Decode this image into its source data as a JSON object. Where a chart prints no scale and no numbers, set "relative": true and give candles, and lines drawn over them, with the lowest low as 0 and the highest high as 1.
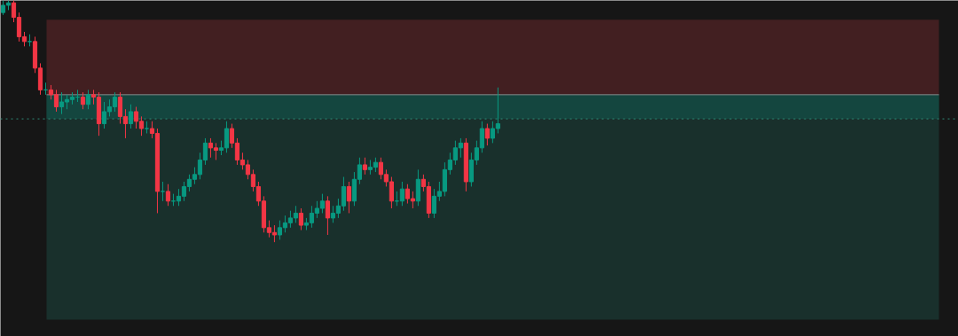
{
  "chart_data": {
    "type": "candlestick",
    "relative": true,
    "categories": [
      null,
      null,
      null,
      null,
      null,
      null,
      null,
      null,
      null,
      null,
      null,
      null,
      null,
      null,
      null,
      null,
      null,
      null,
      null,
      null,
      null,
      null,
      null,
      null,
      null,
      null,
      null,
      null,
      null,
      null,
      null,
      null,
      null,
      null,
      null,
      null,
      null,
      null,
      null,
      null,
      null,
      null,
      null,
      null,
      null,
      null,
      null,
      null,
      null,
      null,
      null,
      null,
      null,
      null,
      null,
      null,
      null,
      null,
      null,
      null,
      null,
      null,
      null,
      null,
      null,
      null,
      null,
      null,
      null,
      null,
      null,
      null,
      null,
      null,
      null,
      null,
      null,
      null,
      null,
      null,
      null,
      null,
      null,
      null,
      null,
      null,
      null,
      null,
      null,
      null,
      null,
      null,
      null,
      null
    ],
    "ohlc": [
      [
        0.95,
        1.0,
        0.94,
        0.98
      ],
      [
        0.98,
        1.0,
        0.96,
        0.99
      ],
      [
        0.99,
        1.0,
        0.91,
        0.93
      ],
      [
        0.93,
        0.95,
        0.83,
        0.85
      ],
      [
        0.85,
        0.87,
        0.81,
        0.83
      ],
      [
        0.83,
        0.86,
        0.81,
        0.83
      ],
      [
        0.83,
        0.85,
        0.7,
        0.72
      ],
      [
        0.72,
        0.74,
        0.61,
        0.63
      ],
      [
        0.63,
        0.66,
        0.61,
        0.63
      ],
      [
        0.63,
        0.65,
        0.59,
        0.61
      ],
      [
        0.61,
        0.63,
        0.54,
        0.56
      ],
      [
        0.56,
        0.62,
        0.53,
        0.58
      ],
      [
        0.58,
        0.61,
        0.55,
        0.59
      ],
      [
        0.59,
        0.62,
        0.57,
        0.6
      ],
      [
        0.6,
        0.63,
        0.58,
        0.6
      ],
      [
        0.6,
        0.62,
        0.55,
        0.57
      ],
      [
        0.57,
        0.63,
        0.55,
        0.61
      ],
      [
        0.61,
        0.63,
        0.57,
        0.6
      ],
      [
        0.6,
        0.62,
        0.44,
        0.49
      ],
      [
        0.49,
        0.58,
        0.47,
        0.54
      ],
      [
        0.54,
        0.59,
        0.52,
        0.56
      ],
      [
        0.56,
        0.62,
        0.54,
        0.6
      ],
      [
        0.6,
        0.62,
        0.49,
        0.52
      ],
      [
        0.52,
        0.55,
        0.43,
        0.49
      ],
      [
        0.49,
        0.57,
        0.47,
        0.54
      ],
      [
        0.54,
        0.56,
        0.47,
        0.5
      ],
      [
        0.5,
        0.52,
        0.44,
        0.47
      ],
      [
        0.47,
        0.5,
        0.45,
        0.47
      ],
      [
        0.47,
        0.5,
        0.43,
        0.45
      ],
      [
        0.45,
        0.47,
        0.12,
        0.21
      ],
      [
        0.21,
        0.25,
        0.17,
        0.21
      ],
      [
        0.21,
        0.24,
        0.15,
        0.17
      ],
      [
        0.17,
        0.2,
        0.15,
        0.17
      ],
      [
        0.17,
        0.22,
        0.15,
        0.19
      ],
      [
        0.19,
        0.25,
        0.17,
        0.23
      ],
      [
        0.23,
        0.28,
        0.21,
        0.26
      ],
      [
        0.26,
        0.31,
        0.24,
        0.28
      ],
      [
        0.28,
        0.37,
        0.26,
        0.34
      ],
      [
        0.34,
        0.43,
        0.32,
        0.41
      ],
      [
        0.41,
        0.43,
        0.35,
        0.39
      ],
      [
        0.39,
        0.41,
        0.34,
        0.38
      ],
      [
        0.38,
        0.42,
        0.36,
        0.39
      ],
      [
        0.39,
        0.5,
        0.37,
        0.47
      ],
      [
        0.47,
        0.49,
        0.39,
        0.41
      ],
      [
        0.41,
        0.43,
        0.32,
        0.34
      ],
      [
        0.34,
        0.37,
        0.3,
        0.32
      ],
      [
        0.32,
        0.34,
        0.26,
        0.28
      ],
      [
        0.28,
        0.3,
        0.21,
        0.23
      ],
      [
        0.23,
        0.25,
        0.15,
        0.17
      ],
      [
        0.17,
        0.19,
        0.04,
        0.06
      ],
      [
        0.06,
        0.09,
        0.02,
        0.04
      ],
      [
        0.04,
        0.07,
        0.0,
        0.03
      ],
      [
        0.03,
        0.09,
        0.01,
        0.06
      ],
      [
        0.06,
        0.11,
        0.04,
        0.08
      ],
      [
        0.08,
        0.13,
        0.06,
        0.1
      ],
      [
        0.1,
        0.15,
        0.08,
        0.12
      ],
      [
        0.12,
        0.14,
        0.05,
        0.07
      ],
      [
        0.07,
        0.1,
        0.05,
        0.08
      ],
      [
        0.08,
        0.15,
        0.06,
        0.12
      ],
      [
        0.12,
        0.17,
        0.1,
        0.14
      ],
      [
        0.14,
        0.2,
        0.12,
        0.17
      ],
      [
        0.17,
        0.19,
        0.03,
        0.1
      ],
      [
        0.1,
        0.15,
        0.08,
        0.12
      ],
      [
        0.12,
        0.18,
        0.1,
        0.15
      ],
      [
        0.15,
        0.27,
        0.13,
        0.23
      ],
      [
        0.23,
        0.25,
        0.12,
        0.17
      ],
      [
        0.17,
        0.29,
        0.15,
        0.26
      ],
      [
        0.26,
        0.35,
        0.24,
        0.32
      ],
      [
        0.32,
        0.35,
        0.28,
        0.3
      ],
      [
        0.3,
        0.34,
        0.28,
        0.31
      ],
      [
        0.31,
        0.35,
        0.29,
        0.33
      ],
      [
        0.33,
        0.35,
        0.26,
        0.28
      ],
      [
        0.28,
        0.3,
        0.23,
        0.25
      ],
      [
        0.25,
        0.27,
        0.14,
        0.17
      ],
      [
        0.17,
        0.21,
        0.15,
        0.17
      ],
      [
        0.17,
        0.25,
        0.15,
        0.22
      ],
      [
        0.22,
        0.24,
        0.16,
        0.18
      ],
      [
        0.18,
        0.21,
        0.14,
        0.17
      ],
      [
        0.17,
        0.3,
        0.15,
        0.26
      ],
      [
        0.26,
        0.28,
        0.21,
        0.23
      ],
      [
        0.23,
        0.25,
        0.1,
        0.12
      ],
      [
        0.12,
        0.22,
        0.1,
        0.19
      ],
      [
        0.19,
        0.25,
        0.17,
        0.21
      ],
      [
        0.21,
        0.33,
        0.19,
        0.3
      ],
      [
        0.3,
        0.37,
        0.28,
        0.34
      ],
      [
        0.34,
        0.42,
        0.32,
        0.39
      ],
      [
        0.39,
        0.43,
        0.35,
        0.41
      ],
      [
        0.41,
        0.43,
        0.21,
        0.25
      ],
      [
        0.25,
        0.37,
        0.23,
        0.34
      ],
      [
        0.34,
        0.42,
        0.32,
        0.39
      ],
      [
        0.39,
        0.5,
        0.37,
        0.47
      ],
      [
        0.47,
        0.49,
        0.4,
        0.43
      ],
      [
        0.43,
        0.5,
        0.41,
        0.47
      ],
      [
        0.47,
        0.64,
        0.45,
        0.49
      ]
    ],
    "bands": [
      {
        "axis": "y",
        "from": 0.61,
        "to": 0.92,
        "color": "#421f21"
      },
      {
        "axis": "y",
        "from": 0.51,
        "to": 0.61,
        "color": "#14463f"
      }
    ],
    "ref_lines": [
      {
        "axis": "y",
        "value": 0.51,
        "color": "#2f8a78",
        "line_style": "dotted"
      },
      {
        "axis": "y",
        "value": 0.61,
        "color": "#8a8a8a",
        "line_style": "solid"
      }
    ]
  }
}
